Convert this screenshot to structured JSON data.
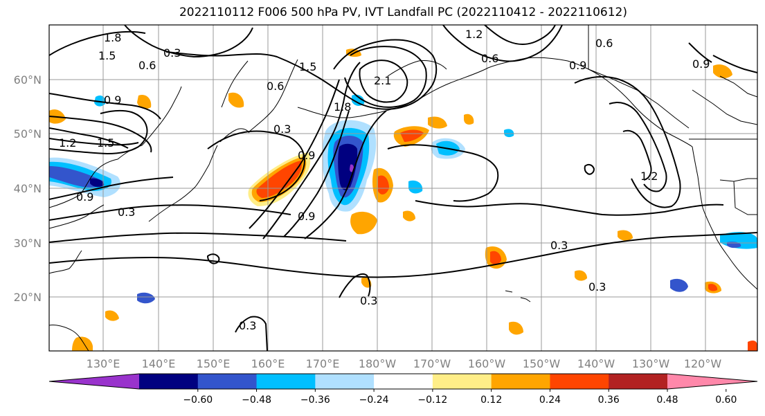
{
  "title": "2022110112 F006 500 hPa PV, IVT Landfall PC (2022110412 - 2022110612)",
  "lat_labels": [
    "60°N",
    "50°N",
    "40°N",
    "30°N",
    "20°N"
  ],
  "lon_labels": [
    "130°E",
    "140°E",
    "150°E",
    "160°E",
    "170°E",
    "180°W",
    "170°W",
    "160°W",
    "150°W",
    "140°W",
    "130°W",
    "120°W"
  ],
  "contour_labels": [
    "1.8",
    "1.5",
    "0.3",
    "0.6",
    "0.9",
    "1.2",
    "1.5",
    "0.6",
    "0.9",
    "0.9",
    "0.3",
    "0.3",
    "0.9",
    "1.8",
    "2.1",
    "1.5",
    "1.2",
    "0.6",
    "0.9",
    "0.6",
    "0.9",
    "1.2",
    "0.3",
    "0.3",
    "0.3",
    "0.3"
  ],
  "colorbar": {
    "colors": [
      "#9933cc",
      "#000080",
      "#3355cc",
      "#00bfff",
      "#b0e0ff",
      "#ffffff",
      "#ffee88",
      "#ffa500",
      "#ff4500",
      "#b22222",
      "#ff88aa"
    ],
    "tick_labels": [
      "−0.60",
      "−0.48",
      "−0.36",
      "−0.24",
      "−0.12",
      "0.12",
      "0.24",
      "0.36",
      "0.48",
      "0.60"
    ]
  },
  "fill_colors": {
    "neg1": "#b0e0ff",
    "neg2": "#00bfff",
    "neg3": "#3355cc",
    "neg4": "#000080",
    "neg5": "#9933cc",
    "pos1": "#ffee88",
    "pos2": "#ffa500",
    "pos3": "#ff4500",
    "pos4": "#b22222"
  }
}
